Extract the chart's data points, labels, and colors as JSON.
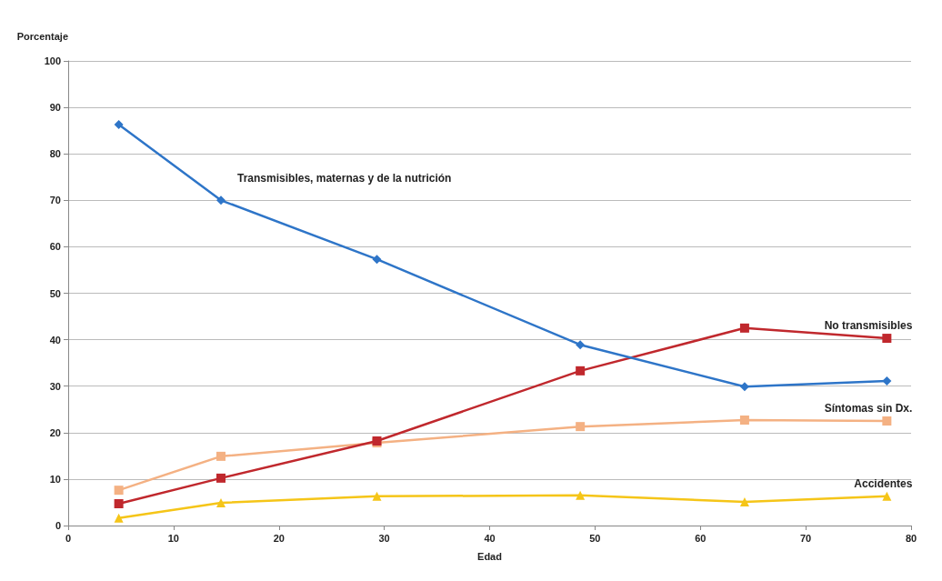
{
  "chart_data": {
    "type": "line",
    "xlabel": "Edad",
    "ylabel": "Porcentaje",
    "xlim": [
      0,
      80
    ],
    "xticks": [
      0,
      10,
      20,
      30,
      40,
      50,
      60,
      70,
      80
    ],
    "ylim": [
      0,
      100
    ],
    "yticks": [
      0,
      10,
      20,
      30,
      40,
      50,
      60,
      70,
      80,
      90,
      100
    ],
    "grid": "y",
    "legend": false,
    "line_style": "solid",
    "series": [
      {
        "name": "Transmisibles, maternas y de la nutrición",
        "color": "#2e75c8",
        "marker": "diamond",
        "x": [
          4.8,
          14.5,
          29.3,
          48.6,
          64.2,
          77.7
        ],
        "values": [
          86.3,
          70,
          57.3,
          38.9,
          29.9,
          31.1
        ]
      },
      {
        "name": "No transmisibles",
        "color": "#c0282d",
        "marker": "square",
        "x": [
          4.8,
          14.5,
          29.3,
          48.6,
          64.2,
          77.7
        ],
        "values": [
          4.7,
          10.2,
          18.2,
          33.3,
          42.5,
          40.3
        ]
      },
      {
        "name": "Síntomas sin Dx.",
        "color": "#f4b183",
        "marker": "square",
        "x": [
          4.8,
          14.5,
          29.3,
          48.6,
          64.2,
          77.7
        ],
        "values": [
          7.6,
          14.9,
          17.8,
          21.3,
          22.7,
          22.5
        ]
      },
      {
        "name": "Accidentes",
        "color": "#f5c518",
        "marker": "triangle",
        "x": [
          4.8,
          14.5,
          29.3,
          48.6,
          64.2,
          77.7
        ],
        "values": [
          1.6,
          4.9,
          6.3,
          6.5,
          5.1,
          6.3
        ]
      }
    ]
  }
}
